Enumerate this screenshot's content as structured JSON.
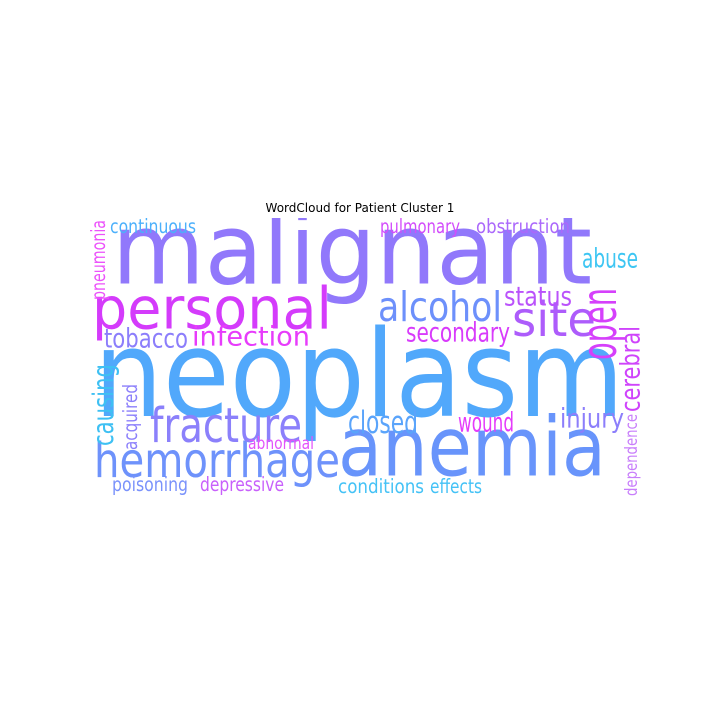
{
  "chart_data": {
    "type": "wordcloud",
    "title": "WordCloud for Patient Cluster 1",
    "words": [
      {
        "text": "malignant",
        "color": "#9178fb"
      },
      {
        "text": "neoplasm",
        "color": "#51a8fb"
      },
      {
        "text": "anemia",
        "color": "#6894fb"
      },
      {
        "text": "personal",
        "color": "#d43bfb"
      },
      {
        "text": "hemorrhage",
        "color": "#6e92fb"
      },
      {
        "text": "fracture",
        "color": "#8b80fb"
      },
      {
        "text": "site",
        "color": "#ad5cfb"
      },
      {
        "text": "alcohol",
        "color": "#6d90fb"
      },
      {
        "text": "open",
        "color": "#d540fb"
      },
      {
        "text": "infection",
        "color": "#e73cfb"
      },
      {
        "text": "tobacco",
        "color": "#8c7efb"
      },
      {
        "text": "secondary",
        "color": "#d83bfb"
      },
      {
        "text": "status",
        "color": "#ba52fb"
      },
      {
        "text": "abuse",
        "color": "#3ec6f3"
      },
      {
        "text": "causing",
        "color": "#3ec0f3"
      },
      {
        "text": "closed",
        "color": "#5aa4fb"
      },
      {
        "text": "wound",
        "color": "#e53bfb"
      },
      {
        "text": "injury",
        "color": "#8c7efb"
      },
      {
        "text": "cerebral",
        "color": "#cf44fb"
      },
      {
        "text": "continuous",
        "color": "#4cb0fb"
      },
      {
        "text": "pulmonary",
        "color": "#d24cfb"
      },
      {
        "text": "obstruction",
        "color": "#ab68fb"
      },
      {
        "text": "pneumonia",
        "color": "#ec52fb"
      },
      {
        "text": "acquired",
        "color": "#8c80fb"
      },
      {
        "text": "abnormal",
        "color": "#e254fb"
      },
      {
        "text": "poisoning",
        "color": "#7a92fb"
      },
      {
        "text": "depressive",
        "color": "#c860fb"
      },
      {
        "text": "conditions",
        "color": "#44c2f6"
      },
      {
        "text": "effects",
        "color": "#44c2f6"
      },
      {
        "text": "dependence",
        "color": "#c87efb"
      }
    ]
  }
}
